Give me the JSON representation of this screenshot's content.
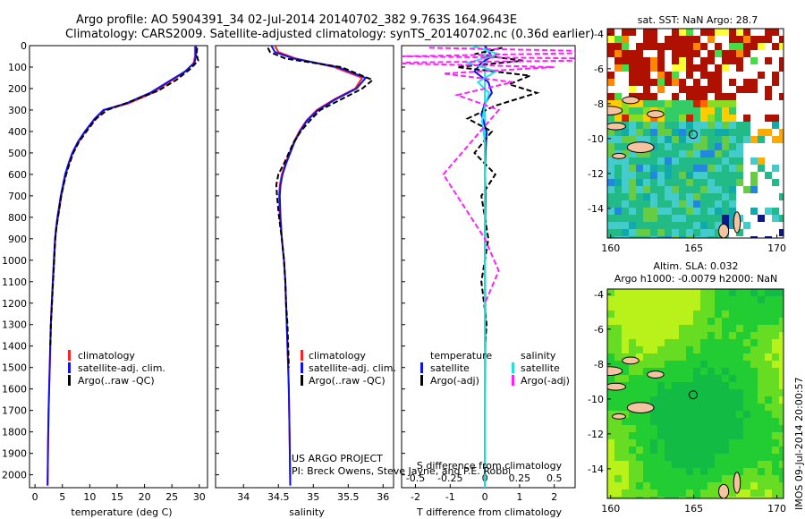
{
  "header": {
    "line1": "Argo profile: AO 5904391_34 02-Jul-2014 20140702_382 9.763S 164.9643E",
    "line2": "Climatology: CARS2009. Satellite-adjusted climatology: synTS_20140702.nc (0.36d earlier)"
  },
  "colors": {
    "climatology": "#ff2020",
    "satellite": "#1010ee",
    "argo": "#000000",
    "sat_salinity": "#20e0e0",
    "argo_salinity": "#ff20ff"
  },
  "pressure_ticks": [
    0,
    100,
    200,
    300,
    400,
    500,
    600,
    700,
    800,
    900,
    1000,
    1100,
    1200,
    1300,
    1400,
    1500,
    1600,
    1700,
    1800,
    1900,
    2000
  ],
  "pressure_range": [
    0,
    2060
  ],
  "chart_data": [
    {
      "type": "line",
      "id": "temperature",
      "xlabel": "temperature (deg C)",
      "xlim": [
        -1,
        31.5
      ],
      "xticks": [
        0,
        5,
        10,
        15,
        20,
        25,
        30
      ],
      "y_reversed": true,
      "legend": [
        "climatology",
        "satellite-adj. clim.",
        "Argo(..raw -QC)"
      ],
      "legend_placement": "lower-right",
      "series": [
        {
          "name": "climatology",
          "style": "solid",
          "x": [
            29.2,
            29.2,
            29,
            27.5,
            24.5,
            21.5,
            17,
            12.7,
            11,
            9.2,
            7.9,
            6.9,
            6.2,
            5.6,
            5.2,
            4.8,
            4.5,
            4.2,
            3.9,
            3.7,
            3.5,
            3.3,
            3.1,
            2.9,
            2.8,
            2.7,
            2.6,
            2.5,
            2.4,
            2.3
          ],
          "y": [
            0,
            50,
            80,
            120,
            170,
            220,
            270,
            300,
            340,
            400,
            450,
            500,
            550,
            600,
            650,
            700,
            750,
            800,
            850,
            900,
            1000,
            1100,
            1200,
            1300,
            1400,
            1500,
            1600,
            1700,
            1850,
            2050
          ]
        },
        {
          "name": "satellite-adj. clim.",
          "style": "solid",
          "x": [
            29.4,
            29.4,
            29.1,
            27.4,
            24.2,
            21,
            16.6,
            12.5,
            10.9,
            9.1,
            7.8,
            6.8,
            6.1,
            5.5,
            5.1,
            4.7,
            4.4,
            4.1,
            3.85,
            3.65,
            3.45,
            3.25,
            3.05,
            2.88,
            2.78,
            2.68,
            2.58,
            2.48,
            2.38,
            2.3
          ],
          "y": [
            0,
            50,
            80,
            120,
            170,
            220,
            270,
            300,
            340,
            400,
            450,
            500,
            550,
            600,
            650,
            700,
            750,
            800,
            850,
            900,
            1000,
            1100,
            1200,
            1300,
            1400,
            1500,
            1600,
            1700,
            1850,
            2050
          ]
        },
        {
          "name": "Argo(..raw -QC)",
          "style": "dashed",
          "x": [
            29.6,
            29.5,
            29.8,
            28.3,
            25.8,
            22.5,
            17.5,
            13.2,
            11.2,
            9.4,
            8,
            7,
            6.3,
            5.7,
            5.2,
            4.8,
            4.5,
            4.2,
            3.9,
            3.7,
            3.5,
            3.3,
            3.1,
            2.9,
            2.8
          ],
          "y": [
            10,
            40,
            70,
            110,
            160,
            210,
            260,
            300,
            340,
            400,
            450,
            500,
            550,
            600,
            650,
            700,
            750,
            800,
            850,
            900,
            1000,
            1100,
            1200,
            1300,
            1400
          ]
        }
      ]
    },
    {
      "type": "line",
      "id": "salinity",
      "xlabel": "salinity",
      "xlim": [
        33.6,
        36.15
      ],
      "xticks": [
        34,
        34.5,
        35,
        35.5,
        36
      ],
      "y_reversed": true,
      "legend": [
        "climatology",
        "satellite-adj. clim.",
        "Argo(..raw -QC)"
      ],
      "legend_placement": "lower-right",
      "series": [
        {
          "name": "climatology",
          "style": "solid",
          "x": [
            34.45,
            34.5,
            34.75,
            35.3,
            35.7,
            35.6,
            35.3,
            35.05,
            34.9,
            34.8,
            34.72,
            34.66,
            34.6,
            34.55,
            34.52,
            34.51,
            34.52,
            34.55,
            34.58,
            34.6,
            34.61,
            34.62,
            34.63,
            34.64,
            34.65,
            34.66,
            34.67
          ],
          "y": [
            0,
            30,
            60,
            100,
            150,
            200,
            250,
            300,
            350,
            400,
            450,
            500,
            550,
            600,
            650,
            700,
            800,
            900,
            1000,
            1100,
            1200,
            1300,
            1400,
            1500,
            1600,
            1800,
            2050
          ]
        },
        {
          "name": "satellite-adj. clim.",
          "style": "solid",
          "x": [
            34.4,
            34.45,
            34.72,
            35.35,
            35.75,
            35.62,
            35.32,
            35.07,
            34.91,
            34.81,
            34.73,
            34.67,
            34.61,
            34.56,
            34.53,
            34.52,
            34.53,
            34.55,
            34.58,
            34.6,
            34.61,
            34.62,
            34.63,
            34.64,
            34.65,
            34.66,
            34.67
          ],
          "y": [
            0,
            30,
            60,
            100,
            150,
            200,
            250,
            300,
            350,
            400,
            450,
            500,
            550,
            600,
            650,
            700,
            800,
            900,
            1000,
            1100,
            1200,
            1300,
            1400,
            1500,
            1600,
            1800,
            2050
          ]
        },
        {
          "name": "Argo(..raw -QC)",
          "style": "dashed",
          "x": [
            34.35,
            34.38,
            34.6,
            35.4,
            35.85,
            35.7,
            35.4,
            35.1,
            34.95,
            34.82,
            34.72,
            34.65,
            34.58,
            34.5,
            34.47,
            34.48,
            34.51,
            34.55,
            34.58,
            34.6,
            34.61,
            34.63,
            34.64,
            34.65
          ],
          "y": [
            10,
            30,
            60,
            100,
            160,
            200,
            250,
            300,
            350,
            400,
            450,
            500,
            550,
            600,
            650,
            700,
            800,
            900,
            1000,
            1100,
            1200,
            1300,
            1400,
            1500
          ]
        }
      ]
    },
    {
      "type": "line",
      "id": "difference",
      "xlabel": "T difference from climatology",
      "xlabel_top": "S difference from climatology",
      "xlim": [
        -2.4,
        2.6
      ],
      "xticks": [
        -2,
        -1,
        0,
        1,
        2
      ],
      "xticks_top": [
        -0.5,
        -0.25,
        0,
        0.25,
        0.5
      ],
      "y_reversed": true,
      "legend": {
        "temperature": {
          "title": "temperature",
          "items": [
            "satellite",
            "Argo(-adj)"
          ]
        },
        "salinity": {
          "title": "salinity",
          "items": [
            "satellite",
            "Argo(-adj)"
          ]
        }
      },
      "legend_placement": "lower-center",
      "series": [
        {
          "name": "satellite",
          "group": "temperature",
          "style": "solid",
          "x": [
            0,
            0.2,
            -0.1,
            -0.3,
            0.1,
            0.2,
            0,
            -0.1,
            0.05,
            0.02,
            0,
            0.02,
            0.01,
            0,
            0.01,
            0,
            0
          ],
          "y": [
            0,
            50,
            80,
            120,
            170,
            220,
            270,
            320,
            400,
            500,
            600,
            700,
            800,
            1000,
            1300,
            1700,
            2050
          ]
        },
        {
          "name": "Argo(-adj)",
          "group": "temperature",
          "style": "dashed",
          "x": [
            0.5,
            -0.3,
            1.1,
            -0.8,
            1.3,
            0.7,
            1.5,
            0.3,
            -0.5,
            0.2,
            -0.3,
            0.3,
            -0.1,
            0.1,
            -0.1,
            0.05,
            0
          ],
          "y": [
            10,
            40,
            70,
            100,
            140,
            180,
            220,
            280,
            340,
            400,
            500,
            600,
            700,
            900,
            1100,
            1300,
            1400
          ]
        },
        {
          "name": "satellite",
          "group": "salinity",
          "style": "solid",
          "x": [
            -0.1,
            0.1,
            -0.12,
            0.08,
            -0.05,
            0.03,
            0,
            -0.02,
            0,
            0,
            0,
            0
          ],
          "y": [
            0,
            40,
            80,
            120,
            170,
            220,
            280,
            350,
            450,
            600,
            1000,
            2050
          ]
        },
        {
          "name": "Argo(-adj)",
          "group": "salinity",
          "style": "dashed",
          "x": [
            -0.4,
            1.1,
            -0.6,
            1.4,
            -0.8,
            0.5,
            -0.3,
            0.2,
            -0.2,
            0.1,
            -0.3,
            0,
            0.1,
            0
          ],
          "y": [
            10,
            30,
            50,
            65,
            80,
            100,
            130,
            170,
            230,
            300,
            600,
            900,
            1050,
            1200
          ]
        }
      ]
    }
  ],
  "maps": [
    {
      "id": "sst-map",
      "title": "sat. SST: NaN Argo: 28.7",
      "xticks": [
        160,
        165,
        170
      ],
      "yticks": [
        -4,
        -6,
        -8,
        -10,
        -12,
        -14
      ],
      "xlim": [
        159.8,
        170.4
      ],
      "ylim": [
        -15.7,
        -3.7
      ],
      "float_position": [
        164.9643,
        -9.763
      ]
    },
    {
      "id": "sla-map",
      "title_line1": "Altim. SLA: 0.032",
      "title_line2": "Argo h1000: -0.0079 h2000: NaN",
      "xticks": [
        160,
        165,
        170
      ],
      "yticks": [
        -4,
        -6,
        -8,
        -10,
        -12,
        -14
      ],
      "xlim": [
        159.8,
        170.4
      ],
      "ylim": [
        -15.7,
        -3.7
      ],
      "float_position": [
        164.9643,
        -9.763
      ]
    }
  ],
  "credit": {
    "line1": "US ARGO PROJECT",
    "line2": "PI: Breck Owens, Steve Jayne, and P.E. Robbi"
  },
  "stamp": "IMOS 09-Jul-2014 20:00:57"
}
